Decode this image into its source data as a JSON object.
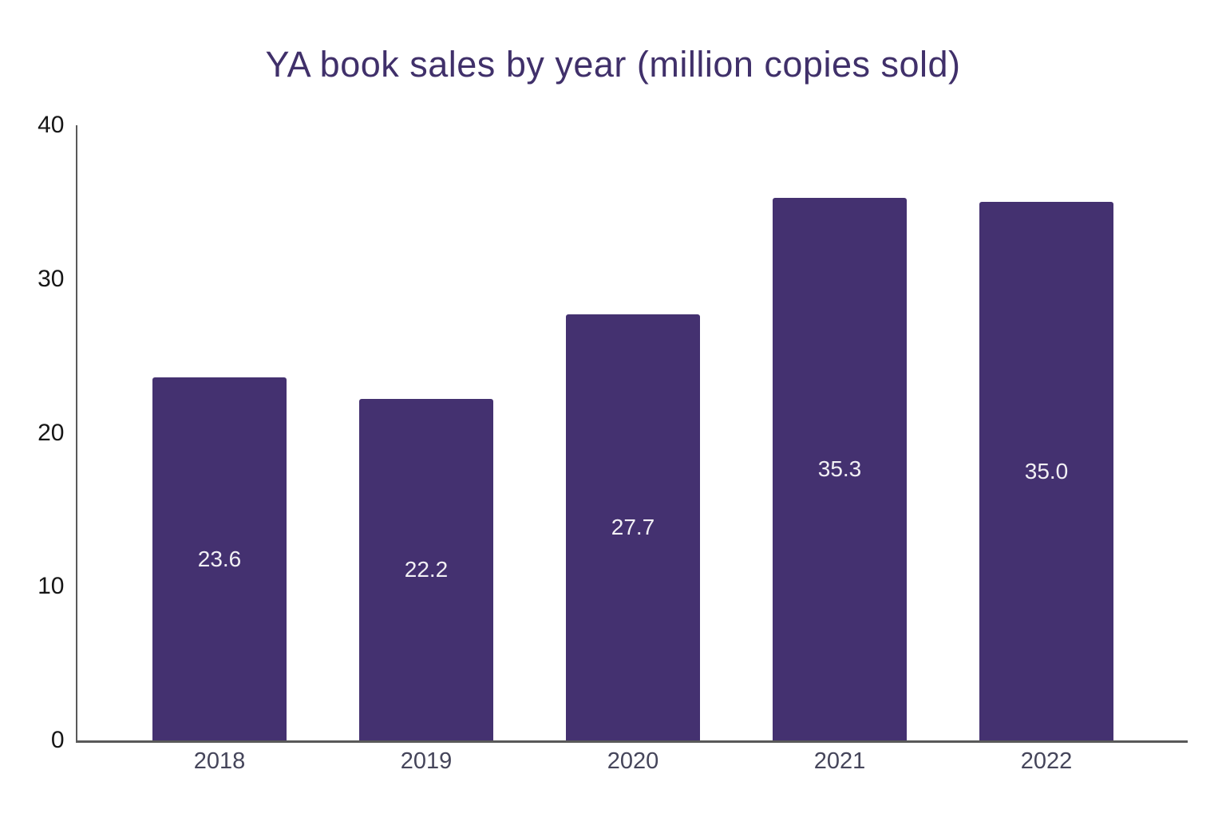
{
  "chart_data": {
    "type": "bar",
    "title": "YA book sales by year (million copies sold)",
    "categories": [
      "2018",
      "2019",
      "2020",
      "2021",
      "2022"
    ],
    "values": [
      23.6,
      22.2,
      27.7,
      35.3,
      35.0
    ],
    "value_labels": [
      "23.6",
      "22.2",
      "27.7",
      "35.3",
      "35.0"
    ],
    "xlabel": "",
    "ylabel": "",
    "ylim": [
      0,
      40
    ],
    "yticks": [
      0,
      10,
      20,
      30,
      40
    ],
    "grid": false,
    "legend": false,
    "colors": {
      "bar": "#443170",
      "value_label": "#f2f0f4",
      "title": "#40306a",
      "xtick": "#45455a",
      "ytick": "#161616",
      "axis": "#595959"
    }
  }
}
